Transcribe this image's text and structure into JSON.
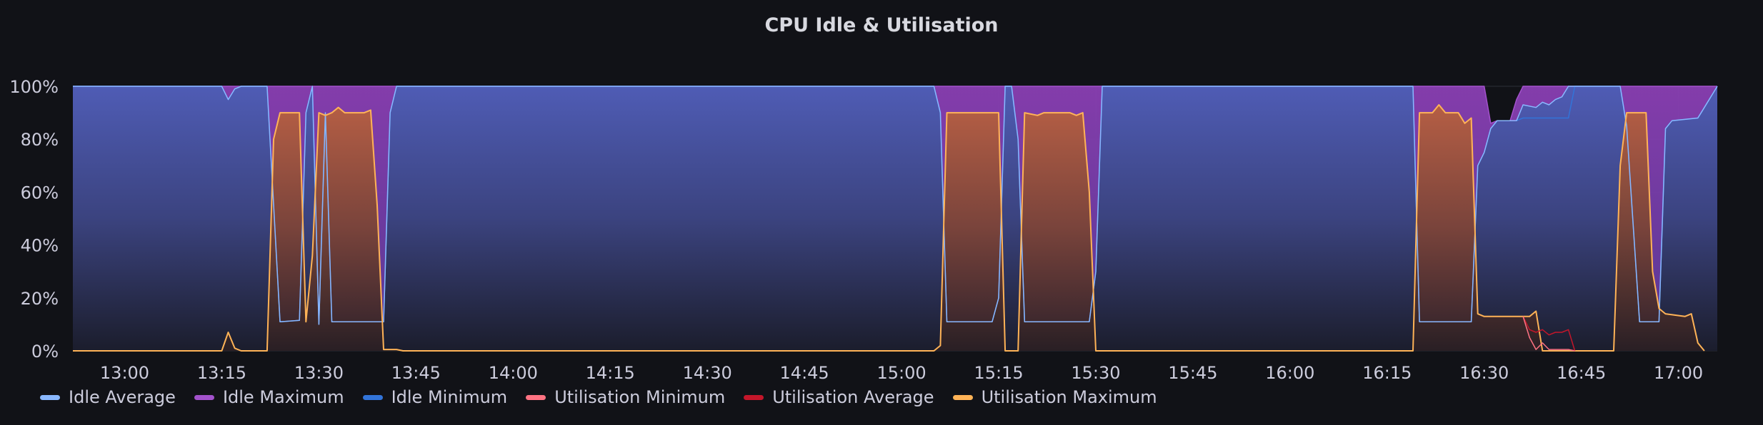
{
  "chart_data": {
    "type": "area",
    "title": "CPU Idle & Utilisation",
    "xlabel": "",
    "ylabel": "",
    "y_tick_labels": [
      "0%",
      "20%",
      "40%",
      "60%",
      "80%",
      "100%"
    ],
    "x_tick_labels": [
      "13:00",
      "13:15",
      "13:30",
      "13:45",
      "14:00",
      "14:15",
      "14:30",
      "14:45",
      "15:00",
      "15:15",
      "15:30",
      "15:45",
      "16:00",
      "16:15",
      "16:30",
      "16:45",
      "17:00"
    ],
    "x_range": [
      "12:52",
      "17:06"
    ],
    "ylim": [
      0,
      100
    ],
    "grid": true,
    "legend_position": "bottom",
    "series": [
      {
        "name": "Idle Average",
        "color": "#8ab8ff",
        "points": [
          [
            "12:52",
            100
          ],
          [
            "13:15",
            100
          ],
          [
            "13:16",
            95
          ],
          [
            "13:17",
            99
          ],
          [
            "13:18",
            100
          ],
          [
            "13:22",
            100
          ],
          [
            "13:24",
            11
          ],
          [
            "13:27",
            11.5
          ],
          [
            "13:28",
            90
          ],
          [
            "13:29",
            100
          ],
          [
            "13:30",
            10
          ],
          [
            "13:31",
            90
          ],
          [
            "13:32",
            11
          ],
          [
            "13:40",
            11
          ],
          [
            "13:41",
            90
          ],
          [
            "13:42",
            100
          ],
          [
            "15:05",
            100
          ],
          [
            "15:06",
            90
          ],
          [
            "15:07",
            11
          ],
          [
            "15:14",
            11
          ],
          [
            "15:15",
            20
          ],
          [
            "15:16",
            100
          ],
          [
            "15:17",
            100
          ],
          [
            "15:18",
            80
          ],
          [
            "15:19",
            11
          ],
          [
            "15:27",
            11
          ],
          [
            "15:29",
            11
          ],
          [
            "15:30",
            30
          ],
          [
            "15:31",
            100
          ],
          [
            "16:19",
            100
          ],
          [
            "16:20",
            11
          ],
          [
            "16:28",
            11
          ],
          [
            "16:29",
            70
          ],
          [
            "16:30",
            75
          ],
          [
            "16:31",
            84
          ],
          [
            "16:32",
            87
          ],
          [
            "16:35",
            87
          ],
          [
            "16:36",
            93
          ],
          [
            "16:38",
            92
          ],
          [
            "16:39",
            94
          ],
          [
            "16:40",
            93
          ],
          [
            "16:41",
            95
          ],
          [
            "16:42",
            96
          ],
          [
            "16:43",
            100
          ],
          [
            "16:51",
            100
          ],
          [
            "16:52",
            85
          ],
          [
            "16:54",
            11
          ],
          [
            "16:57",
            11
          ],
          [
            "16:58",
            84
          ],
          [
            "16:59",
            87
          ],
          [
            "17:03",
            88
          ],
          [
            "17:04",
            92
          ],
          [
            "17:06",
            100
          ]
        ]
      },
      {
        "name": "Idle Maximum",
        "color": "#a352cc",
        "points": [
          [
            "12:52",
            100
          ],
          [
            "16:30",
            100
          ],
          [
            "16:31",
            86
          ],
          [
            "16:32",
            87
          ],
          [
            "16:34",
            87
          ],
          [
            "16:35",
            95
          ],
          [
            "16:36",
            100
          ],
          [
            "17:06",
            100
          ]
        ]
      },
      {
        "name": "Idle Minimum",
        "color": "#3274d9",
        "points": [
          [
            "12:52",
            100
          ],
          [
            "13:15",
            100
          ],
          [
            "13:16",
            95
          ],
          [
            "13:17",
            99
          ],
          [
            "13:18",
            100
          ],
          [
            "13:22",
            100
          ],
          [
            "13:24",
            11
          ],
          [
            "13:27",
            11.5
          ],
          [
            "13:28",
            90
          ],
          [
            "13:29",
            100
          ],
          [
            "13:30",
            10
          ],
          [
            "13:31",
            90
          ],
          [
            "13:32",
            11
          ],
          [
            "13:40",
            11
          ],
          [
            "13:41",
            90
          ],
          [
            "13:42",
            100
          ],
          [
            "15:05",
            100
          ],
          [
            "15:06",
            90
          ],
          [
            "15:07",
            11
          ],
          [
            "15:14",
            11
          ],
          [
            "15:15",
            20
          ],
          [
            "15:16",
            100
          ],
          [
            "15:17",
            100
          ],
          [
            "15:18",
            80
          ],
          [
            "15:19",
            11
          ],
          [
            "15:27",
            11
          ],
          [
            "15:29",
            11
          ],
          [
            "15:30",
            30
          ],
          [
            "15:31",
            100
          ],
          [
            "16:19",
            100
          ],
          [
            "16:20",
            11
          ],
          [
            "16:28",
            11
          ],
          [
            "16:29",
            70
          ],
          [
            "16:30",
            75
          ],
          [
            "16:31",
            84
          ],
          [
            "16:32",
            87
          ],
          [
            "16:35",
            87
          ],
          [
            "16:36",
            88
          ],
          [
            "16:43",
            88
          ],
          [
            "16:44",
            100
          ],
          [
            "16:51",
            100
          ],
          [
            "16:52",
            85
          ],
          [
            "16:54",
            11
          ],
          [
            "16:57",
            11
          ],
          [
            "16:58",
            84
          ],
          [
            "16:59",
            87
          ],
          [
            "17:03",
            88
          ],
          [
            "17:04",
            92
          ],
          [
            "17:06",
            100
          ]
        ]
      },
      {
        "name": "Utilisation Minimum",
        "color": "#ff7383",
        "points": [
          [
            "16:36",
            13
          ],
          [
            "16:37",
            5
          ],
          [
            "16:38",
            0.5
          ],
          [
            "16:39",
            3
          ],
          [
            "16:40",
            0.5
          ],
          [
            "16:41",
            0.5
          ],
          [
            "16:43",
            0.5
          ],
          [
            "16:44",
            0
          ]
        ]
      },
      {
        "name": "Utilisation Average",
        "color": "#c4162a",
        "points": [
          [
            "16:36",
            13
          ],
          [
            "16:37",
            8
          ],
          [
            "16:38",
            7
          ],
          [
            "16:39",
            8
          ],
          [
            "16:40",
            6
          ],
          [
            "16:41",
            7
          ],
          [
            "16:42",
            7
          ],
          [
            "16:43",
            8
          ],
          [
            "16:44",
            0
          ]
        ]
      },
      {
        "name": "Utilisation Maximum",
        "color": "#ffb357",
        "points": [
          [
            "12:52",
            0
          ],
          [
            "13:15",
            0
          ],
          [
            "13:16",
            7
          ],
          [
            "13:17",
            1
          ],
          [
            "13:18",
            0
          ],
          [
            "13:22",
            0
          ],
          [
            "13:23",
            80
          ],
          [
            "13:24",
            90
          ],
          [
            "13:27",
            90
          ],
          [
            "13:28",
            11
          ],
          [
            "13:29",
            36
          ],
          [
            "13:30",
            90
          ],
          [
            "13:31",
            89
          ],
          [
            "13:32",
            90
          ],
          [
            "13:33",
            92
          ],
          [
            "13:34",
            90
          ],
          [
            "13:37",
            90
          ],
          [
            "13:38",
            91
          ],
          [
            "13:39",
            55
          ],
          [
            "13:40",
            0.5
          ],
          [
            "13:42",
            0.5
          ],
          [
            "13:43",
            0
          ],
          [
            "15:05",
            0
          ],
          [
            "15:06",
            2
          ],
          [
            "15:07",
            90
          ],
          [
            "15:15",
            90
          ],
          [
            "15:16",
            0
          ],
          [
            "15:18",
            0
          ],
          [
            "15:19",
            90
          ],
          [
            "15:21",
            89
          ],
          [
            "15:22",
            90
          ],
          [
            "15:26",
            90
          ],
          [
            "15:27",
            89
          ],
          [
            "15:28",
            90
          ],
          [
            "15:29",
            60
          ],
          [
            "15:30",
            0
          ],
          [
            "16:19",
            0
          ],
          [
            "16:20",
            90
          ],
          [
            "16:22",
            90
          ],
          [
            "16:23",
            93
          ],
          [
            "16:24",
            90
          ],
          [
            "16:26",
            90
          ],
          [
            "16:27",
            86
          ],
          [
            "16:28",
            88
          ],
          [
            "16:29",
            14
          ],
          [
            "16:30",
            13
          ],
          [
            "16:37",
            13
          ],
          [
            "16:38",
            15
          ],
          [
            "16:39",
            0
          ],
          [
            "16:50",
            0
          ],
          [
            "16:51",
            70
          ],
          [
            "16:52",
            90
          ],
          [
            "16:55",
            90
          ],
          [
            "16:56",
            30
          ],
          [
            "16:57",
            16
          ],
          [
            "16:58",
            14
          ],
          [
            "17:01",
            13
          ],
          [
            "17:02",
            14
          ],
          [
            "17:03",
            3
          ],
          [
            "17:04",
            0
          ]
        ]
      }
    ]
  }
}
